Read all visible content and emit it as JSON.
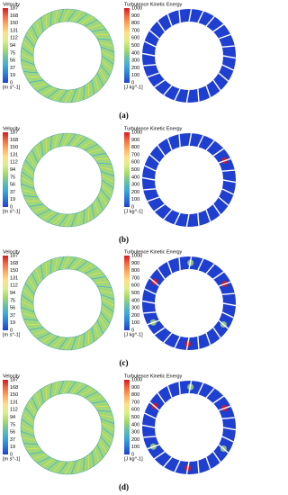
{
  "panels": [
    {
      "label": "(a)",
      "velocity": {
        "title": "Velocity",
        "ticks": [
          "187",
          "168",
          "150",
          "131",
          "112",
          "94",
          "75",
          "56",
          "37",
          "19",
          "0"
        ],
        "unit": "[m s^-1]"
      },
      "tke": {
        "title": "Turbulence Kinetic Energy",
        "ticks": [
          "1000",
          "900",
          "800",
          "700",
          "600",
          "500",
          "400",
          "300",
          "200",
          "100",
          "0"
        ],
        "unit": "[J kg^-1]"
      }
    },
    {
      "label": "(b)",
      "velocity": {
        "title": "Velocity",
        "ticks": [
          "187",
          "168",
          "150",
          "131",
          "112",
          "94",
          "75",
          "56",
          "37",
          "19",
          "0"
        ],
        "unit": "[m s^-1]"
      },
      "tke": {
        "title": "Turbulence Kinetic Energy",
        "ticks": [
          "1000",
          "900",
          "800",
          "700",
          "600",
          "500",
          "400",
          "300",
          "200",
          "100",
          "0"
        ],
        "unit": "[J kg^-1]"
      }
    },
    {
      "label": "(c)",
      "velocity": {
        "title": "Velocity",
        "ticks": [
          "187",
          "168",
          "150",
          "131",
          "112",
          "94",
          "75",
          "56",
          "37",
          "19",
          "0"
        ],
        "unit": "[m s^-1]"
      },
      "tke": {
        "title": "Turbulence Kinetic Energy",
        "ticks": [
          "1000",
          "900",
          "800",
          "700",
          "600",
          "500",
          "400",
          "300",
          "200",
          "100",
          "0"
        ],
        "unit": "[J kg^-1]"
      }
    },
    {
      "label": "(d)",
      "velocity": {
        "title": "Velocity",
        "ticks": [
          "187",
          "168",
          "150",
          "131",
          "112",
          "94",
          "75",
          "56",
          "37",
          "19",
          "0"
        ],
        "unit": "[m s^-1]"
      },
      "tke": {
        "title": "Turbulence Kinetic Energy",
        "ticks": [
          "1000",
          "900",
          "800",
          "700",
          "600",
          "500",
          "400",
          "300",
          "200",
          "100",
          "0"
        ],
        "unit": "[J kg^-1]"
      }
    }
  ]
}
